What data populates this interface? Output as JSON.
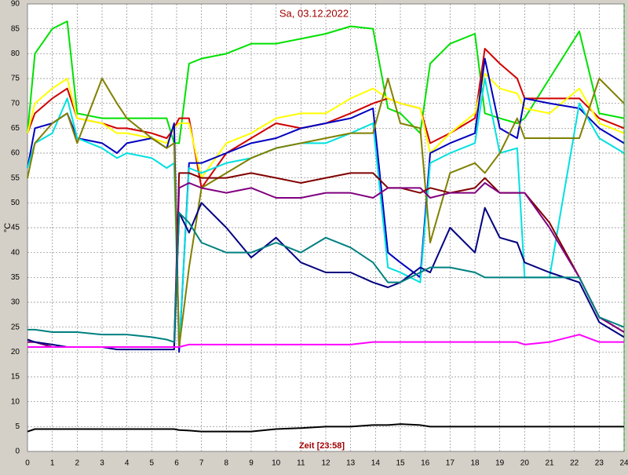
{
  "chart_data": {
    "type": "line",
    "title": "Sa, 03.12.2022",
    "y_label": "°C",
    "x_label": "Zeit [23:58]",
    "grid": true,
    "x": [
      0,
      0.3,
      1,
      1.6,
      2,
      3,
      3.6,
      4,
      5,
      5.6,
      5.9,
      6.1,
      6.5,
      7,
      8,
      9,
      10,
      11,
      12,
      13,
      13.9,
      14.5,
      15,
      15.8,
      16.2,
      17,
      18,
      18.4,
      19,
      19.7,
      20,
      21,
      22.2,
      23,
      24
    ],
    "xlim": [
      0,
      24
    ],
    "xticks": [
      0,
      1,
      2,
      3,
      4,
      5,
      6,
      7,
      8,
      9,
      10,
      11,
      12,
      13,
      14,
      15,
      16,
      17,
      18,
      19,
      20,
      21,
      22,
      23,
      24
    ],
    "ylim": [
      0,
      90
    ],
    "yticks": [
      0,
      5,
      10,
      15,
      20,
      25,
      30,
      35,
      40,
      45,
      50,
      55,
      60,
      65,
      70,
      75,
      80,
      85,
      90
    ],
    "series": [
      {
        "color": "#00e000",
        "values": [
          64,
          80,
          85,
          86.5,
          68,
          67,
          67,
          67,
          67,
          67,
          62,
          62,
          78,
          79,
          80,
          82,
          82,
          83,
          84,
          85.5,
          85,
          69,
          68,
          64,
          78,
          82,
          84,
          68,
          67,
          66,
          67,
          75,
          84.5,
          68,
          67
        ]
      },
      {
        "color": "#d00000",
        "values": [
          64,
          68,
          71,
          73,
          67,
          66,
          65,
          65,
          64,
          63,
          65,
          67,
          67,
          53,
          60,
          63,
          66,
          65,
          66,
          68,
          70,
          71,
          70,
          69,
          62,
          64,
          67,
          81,
          78,
          75,
          71,
          71,
          71,
          67,
          65
        ]
      },
      {
        "color": "#ffff00",
        "values": [
          64,
          70,
          73,
          75,
          67,
          66,
          64,
          64,
          63,
          62,
          65,
          66,
          66,
          55,
          62,
          64,
          67,
          68,
          68,
          71,
          73,
          71,
          70,
          69,
          60,
          64,
          68,
          76,
          73,
          72,
          69,
          68,
          73,
          66,
          64
        ]
      },
      {
        "color": "#0000c0",
        "values": [
          57,
          65,
          66,
          68,
          63,
          62,
          60,
          62,
          63,
          61,
          66,
          20,
          58,
          58,
          60,
          62,
          63,
          65,
          66,
          67,
          69,
          40,
          38,
          35,
          60,
          62,
          64,
          79,
          65,
          63,
          71,
          70,
          69,
          65,
          62
        ]
      },
      {
        "color": "#00e0e0",
        "values": [
          57,
          62,
          64,
          71,
          63,
          61,
          59,
          60,
          59,
          57,
          58,
          21,
          57,
          56,
          58,
          59,
          61,
          62,
          62,
          64,
          66,
          37,
          36,
          34,
          58,
          60,
          62,
          75,
          60,
          61,
          35,
          35,
          70,
          63,
          60
        ]
      },
      {
        "color": "#808000",
        "values": [
          55,
          62,
          66,
          68,
          62,
          75,
          70,
          67,
          63,
          61,
          62,
          21,
          37,
          53,
          56,
          59,
          61,
          62,
          63,
          64,
          64,
          75,
          66,
          65,
          42,
          56,
          58,
          56,
          60,
          67,
          63,
          63,
          63,
          75,
          70
        ]
      },
      {
        "color": "#800000",
        "values": [
          22,
          22,
          21,
          21,
          21,
          21,
          21,
          21,
          21,
          21,
          21,
          56,
          56,
          55,
          55,
          56,
          55,
          54,
          55,
          56,
          56,
          53,
          53,
          52,
          53,
          52,
          53,
          55,
          52,
          52,
          52,
          46,
          35,
          27,
          24
        ]
      },
      {
        "color": "#800080",
        "values": [
          22,
          22,
          21,
          21,
          21,
          21,
          21,
          21,
          21,
          21,
          21,
          53,
          54,
          53,
          52,
          53,
          51,
          51,
          52,
          52,
          51,
          53,
          53,
          53,
          51,
          52,
          52,
          54,
          52,
          52,
          52,
          45,
          35,
          27,
          24
        ]
      },
      {
        "color": "#000080",
        "values": [
          22.5,
          22,
          21.5,
          21,
          21,
          21,
          20.5,
          20.5,
          20.5,
          20.5,
          20.5,
          48,
          44,
          50,
          45,
          39,
          43,
          38,
          36,
          36,
          34,
          33,
          34,
          37,
          36,
          45,
          40,
          49,
          43,
          42,
          38,
          36,
          34,
          26,
          23
        ]
      },
      {
        "color": "#008080",
        "values": [
          24.5,
          24.5,
          24,
          24,
          24,
          23.5,
          23.5,
          23.5,
          23,
          22.5,
          22,
          48,
          46,
          42,
          40,
          40,
          42,
          40,
          43,
          41,
          38,
          34,
          34,
          36,
          37,
          37,
          36,
          35,
          35,
          35,
          35,
          35,
          35,
          27,
          25
        ]
      },
      {
        "color": "#ff00ff",
        "values": [
          21,
          21,
          21,
          21,
          21,
          21,
          21,
          21,
          21,
          21,
          21,
          21,
          21.5,
          21.5,
          21.5,
          21.5,
          21.5,
          21.5,
          21.5,
          21.5,
          22,
          22,
          22,
          22,
          22,
          22,
          22,
          22,
          22,
          22,
          21.5,
          22,
          23.5,
          22,
          22
        ]
      },
      {
        "color": "#000000",
        "values": [
          4,
          4.5,
          4.5,
          4.5,
          4.5,
          4.5,
          4.5,
          4.5,
          4.5,
          4.5,
          4.5,
          4.3,
          4.2,
          4,
          4,
          4,
          4.5,
          4.7,
          5,
          5,
          5.3,
          5.3,
          5.5,
          5.3,
          5,
          5,
          5,
          5,
          5,
          5,
          5,
          5,
          5,
          5,
          5
        ]
      }
    ]
  }
}
